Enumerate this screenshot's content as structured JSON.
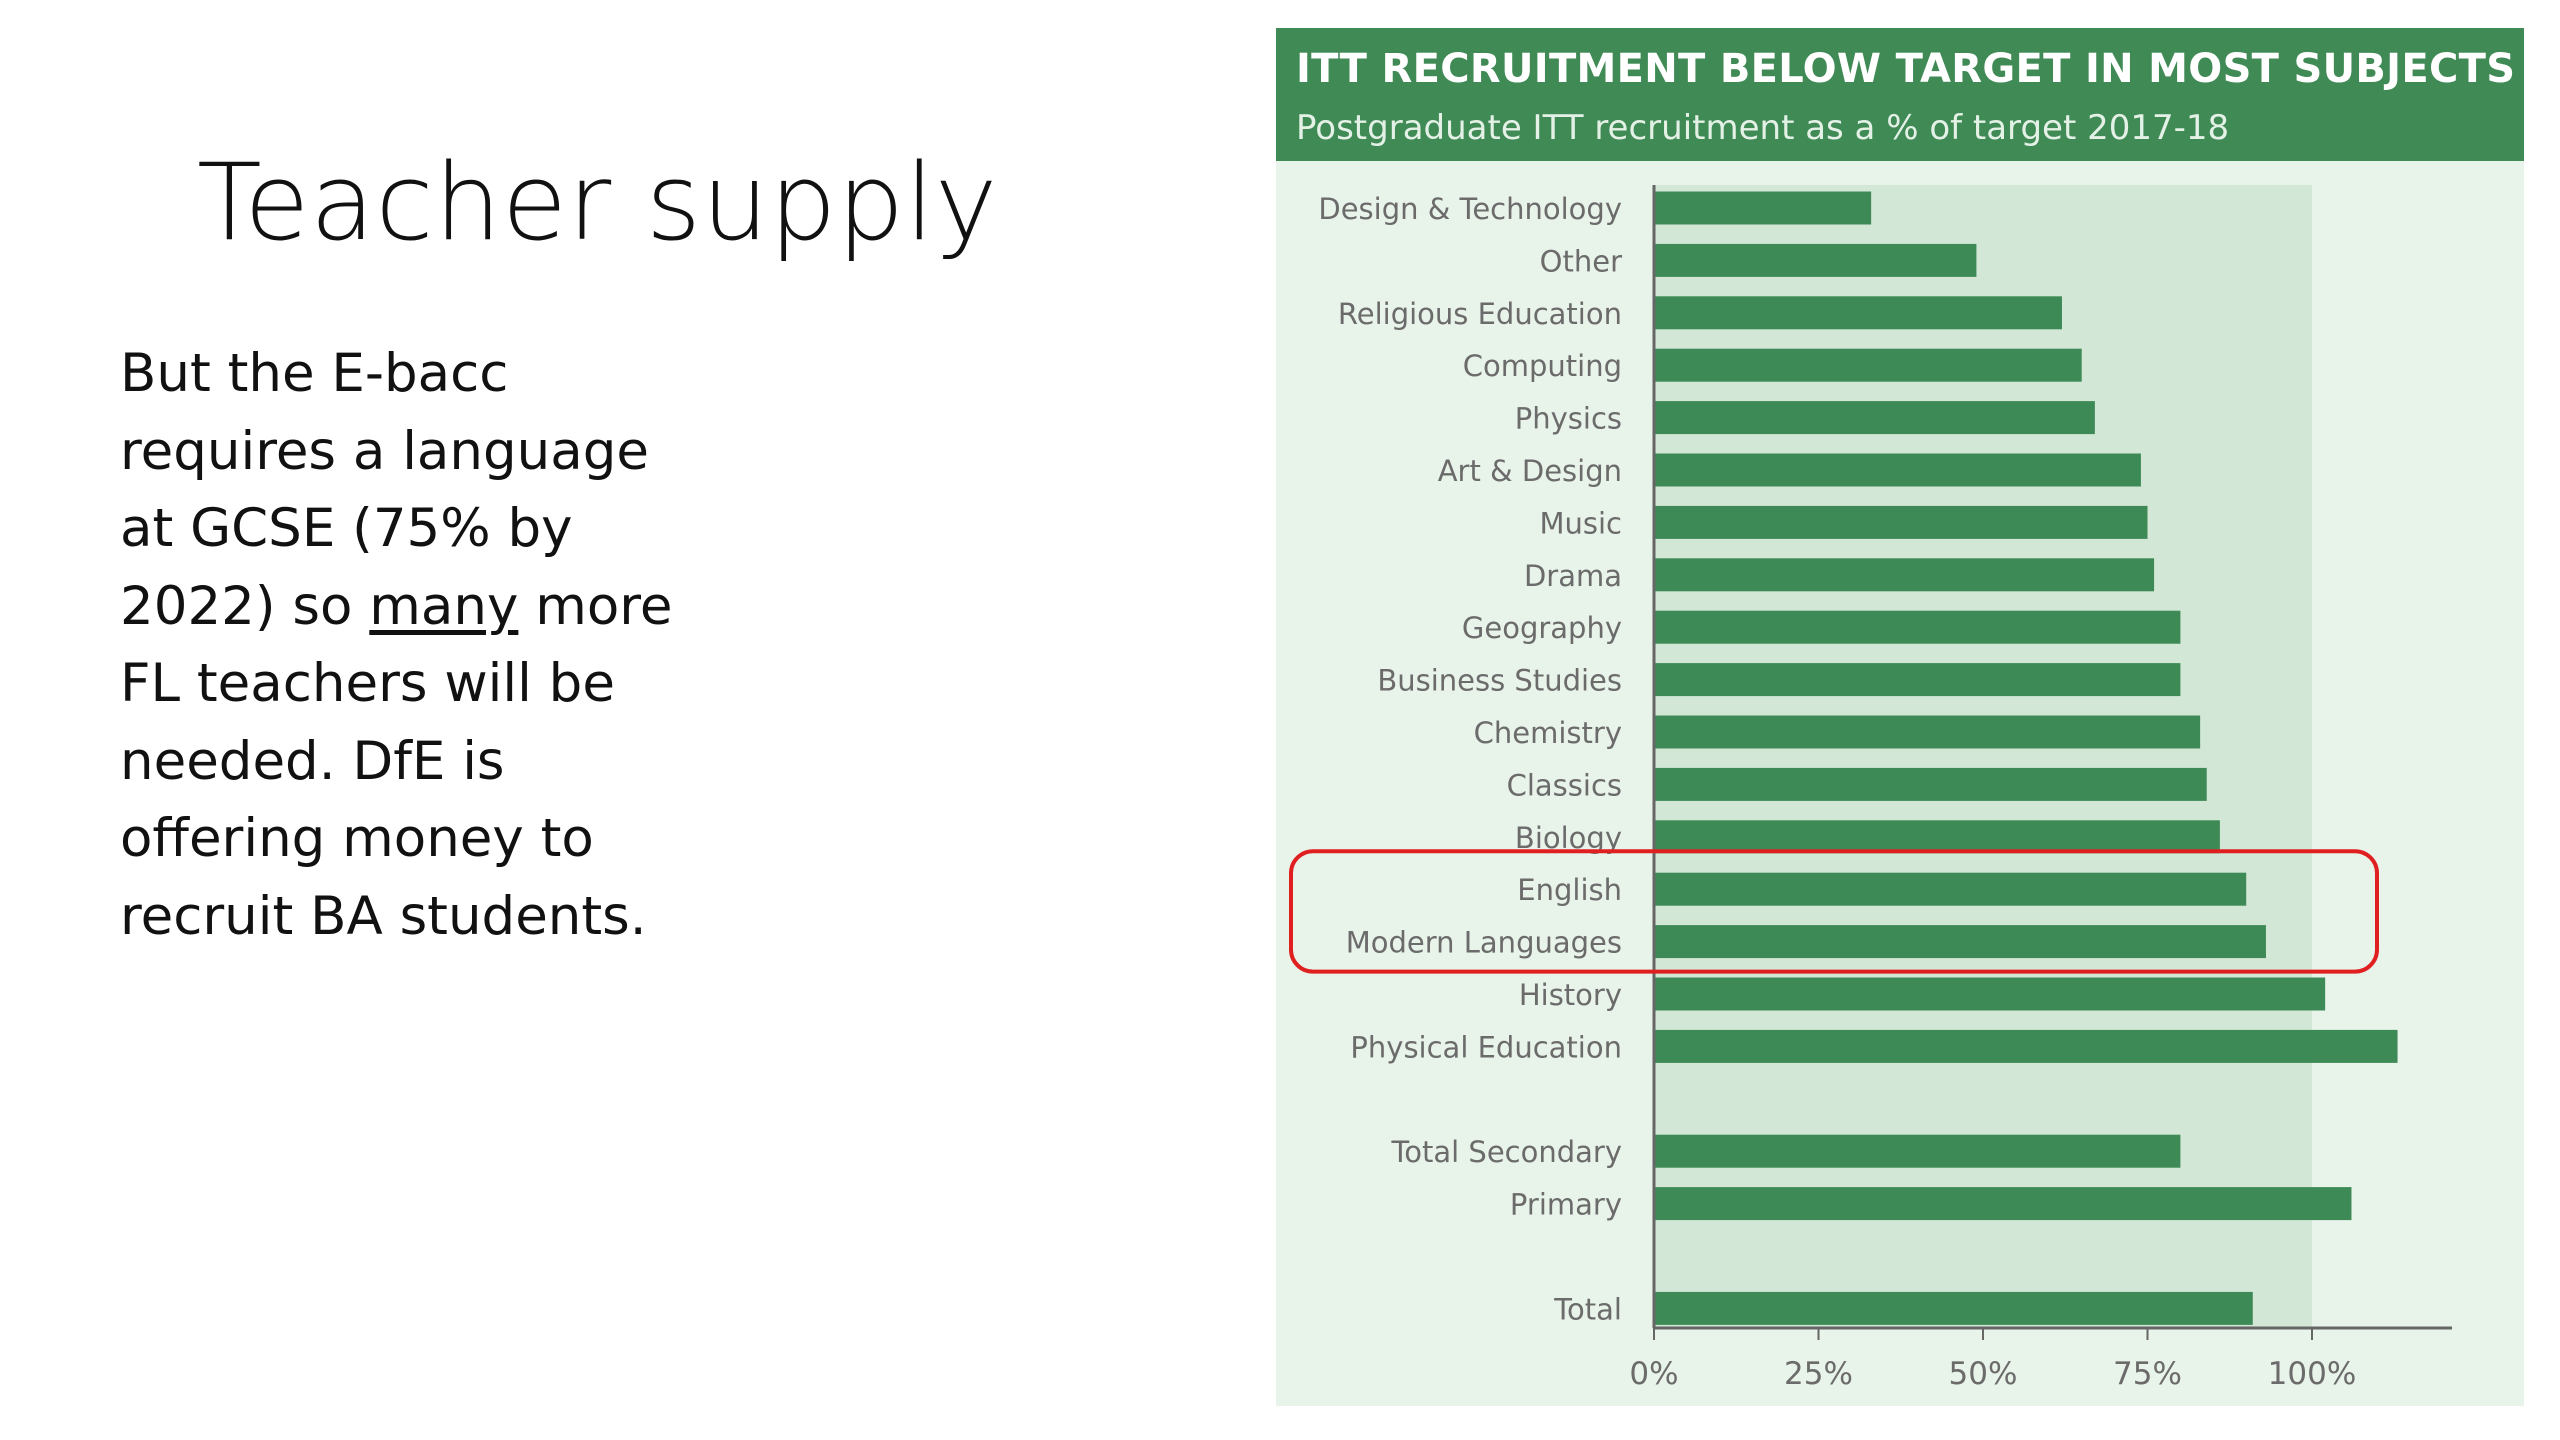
{
  "slide": {
    "title": "Teacher supply",
    "body_before": "But the E-bacc requires a language at GCSE (75% by 2022) so ",
    "body_underlined": "many",
    "body_after": " more FL teachers will be needed. DfE is offering money to recruit BA students."
  },
  "chart_data": {
    "type": "bar",
    "orientation": "horizontal",
    "title": "ITT RECRUITMENT BELOW TARGET IN MOST SUBJECTS",
    "subtitle": "Postgraduate ITT recruitment as a % of target 2017-18",
    "categories": [
      "Design & Technology",
      "Other",
      "Religious Education",
      "Computing",
      "Physics",
      "Art & Design",
      "Music",
      "Drama",
      "Geography",
      "Business Studies",
      "Chemistry",
      "Classics",
      "Biology",
      "English",
      "Modern Languages",
      "History",
      "Physical Education",
      "",
      "Total Secondary",
      "Primary",
      "",
      "Total"
    ],
    "values": [
      33,
      49,
      62,
      65,
      67,
      74,
      75,
      76,
      80,
      80,
      83,
      84,
      86,
      90,
      93,
      102,
      113,
      null,
      80,
      106,
      null,
      91
    ],
    "xlim": [
      0,
      120
    ],
    "xticks": [
      "0%",
      "25%",
      "50%",
      "75%",
      "100%"
    ],
    "xtick_values": [
      0,
      25,
      50,
      75,
      100
    ],
    "target_band": [
      0,
      100
    ],
    "highlighted_categories": [
      "English",
      "Modern Languages"
    ],
    "grid": false,
    "legend": "none",
    "colors": {
      "bar": "#3d8a56",
      "header": "#3f8a55",
      "panel_background": "#e8f3ea",
      "target_band": "#d2e7d6",
      "highlight_outline": "#e02020",
      "axis": "#666666",
      "label_text": "#6b6b6b"
    }
  }
}
